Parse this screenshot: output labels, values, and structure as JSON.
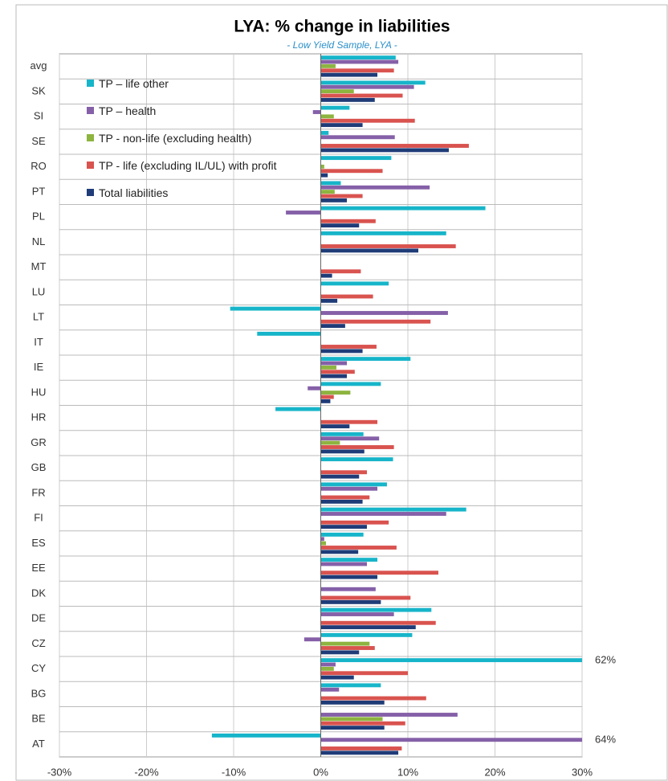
{
  "chart_data": {
    "type": "bar",
    "orientation": "horizontal",
    "title": "LYA: % change in liabilities",
    "subtitle": "- Low Yield Sample, LYA -",
    "categories": [
      "avg",
      "SK",
      "SI",
      "SE",
      "RO",
      "PT",
      "PL",
      "NL",
      "MT",
      "LU",
      "LT",
      "IT",
      "IE",
      "HU",
      "HR",
      "GR",
      "GB",
      "FR",
      "FI",
      "ES",
      "EE",
      "DK",
      "DE",
      "CZ",
      "CY",
      "BG",
      "BE",
      "AT"
    ],
    "series": [
      {
        "name": "TP – life other",
        "color": "#17b5c9",
        "values": [
          8.6,
          12,
          3.3,
          0.9,
          8.1,
          2.3,
          18.9,
          14.4,
          0,
          7.8,
          -10.4,
          -7.3,
          10.3,
          6.9,
          -5.2,
          4.9,
          8.3,
          7.6,
          16.7,
          4.9,
          6.5,
          0,
          12.7,
          10.5,
          62,
          6.9,
          0,
          -12.5
        ],
        "value_labels": [
          null,
          null,
          null,
          null,
          null,
          null,
          null,
          null,
          null,
          null,
          null,
          null,
          null,
          null,
          null,
          null,
          null,
          null,
          null,
          null,
          null,
          null,
          null,
          null,
          "62%",
          null,
          null,
          null
        ]
      },
      {
        "name": "TP – health",
        "color": "#8560a8",
        "values": [
          8.9,
          10.7,
          -0.9,
          8.5,
          0,
          12.5,
          -4.0,
          0,
          0,
          0,
          14.6,
          0,
          3.0,
          -1.5,
          0,
          6.7,
          0,
          6.5,
          14.4,
          0.4,
          5.3,
          6.3,
          8.4,
          -1.9,
          1.7,
          2.1,
          15.7,
          64
        ],
        "value_labels": [
          null,
          null,
          null,
          null,
          null,
          null,
          null,
          null,
          null,
          null,
          null,
          null,
          null,
          null,
          null,
          null,
          null,
          null,
          null,
          null,
          null,
          null,
          null,
          null,
          null,
          null,
          null,
          "64%"
        ]
      },
      {
        "name": "TP - non-life (excluding health)",
        "color": "#8db43f",
        "values": [
          1.7,
          3.8,
          1.5,
          0,
          0.4,
          1.6,
          0,
          0,
          0,
          0,
          0,
          0,
          1.8,
          3.4,
          0,
          2.2,
          0,
          0,
          0,
          0.6,
          0,
          0,
          0,
          5.6,
          1.5,
          0,
          7.1,
          0
        ]
      },
      {
        "name": "TP - life (excluding IL/UL) with profit",
        "color": "#d9534f",
        "values": [
          8.4,
          9.4,
          10.8,
          17,
          7.1,
          4.8,
          6.3,
          15.5,
          4.6,
          6.0,
          12.6,
          6.4,
          3.9,
          1.5,
          6.5,
          8.4,
          5.3,
          5.6,
          7.8,
          8.7,
          13.5,
          10.3,
          13.2,
          6.2,
          10.0,
          12.1,
          9.7,
          9.3
        ]
      },
      {
        "name": "Total liabilities",
        "color": "#1f3c78",
        "values": [
          6.5,
          6.2,
          4.8,
          14.7,
          0.8,
          3.0,
          4.4,
          11.2,
          1.3,
          1.9,
          2.8,
          4.8,
          3.0,
          1.1,
          3.3,
          5.0,
          4.4,
          4.8,
          5.3,
          4.3,
          6.5,
          6.9,
          10.9,
          4.4,
          3.8,
          7.3,
          7.3,
          8.9
        ]
      }
    ],
    "xlim": [
      -30,
      30
    ],
    "xticks": [
      {
        "value": -30,
        "label": "-30%"
      },
      {
        "value": -20,
        "label": "-20%"
      },
      {
        "value": -10,
        "label": "-10%"
      },
      {
        "value": 0,
        "label": "0%"
      },
      {
        "value": 10,
        "label": "10%"
      },
      {
        "value": 20,
        "label": "20%"
      },
      {
        "value": 30,
        "label": "30%"
      }
    ],
    "grid": true,
    "legend": "top-left"
  }
}
